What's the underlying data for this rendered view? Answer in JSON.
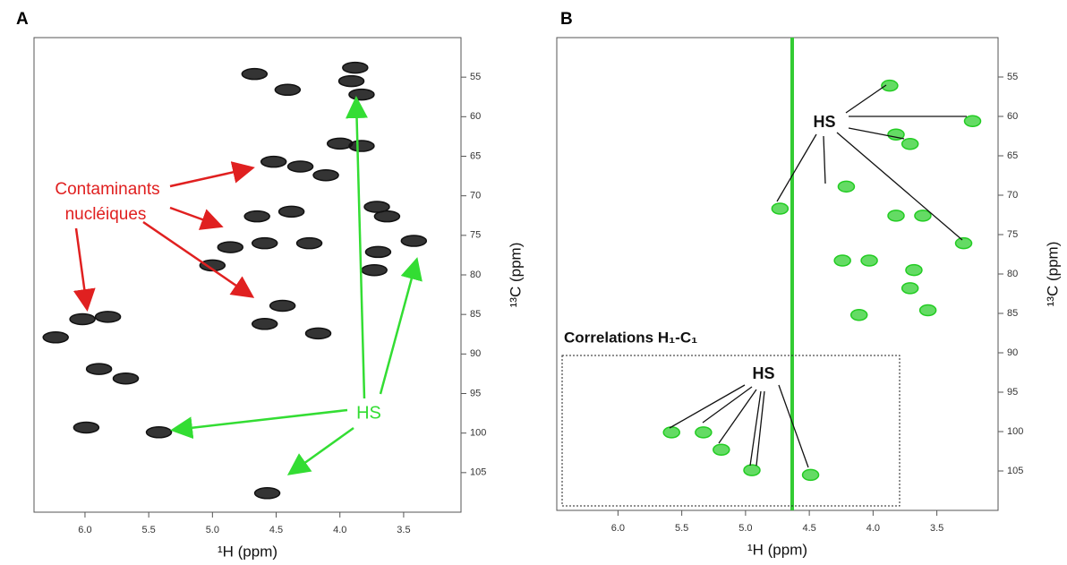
{
  "chart_data": [
    {
      "type": "scatter",
      "panel": "A",
      "xlabel": "¹H (ppm)",
      "ylabel": "¹³C (ppm)",
      "xlim": [
        6.4,
        3.05
      ],
      "ylim": [
        110,
        50
      ],
      "xticks": [
        {
          "value": 6,
          "label": "6.0"
        },
        5.5,
        {
          "value": 5,
          "label": "5.0"
        },
        4.5,
        {
          "value": 4,
          "label": "4.0"
        },
        3.5
      ],
      "yticks": [
        55,
        60,
        65,
        70,
        75,
        80,
        85,
        90,
        95,
        100,
        105
      ],
      "annotations": [
        "Contaminants",
        "nucléiques",
        "HS"
      ],
      "series": [
        {
          "color": "#111111",
          "x": [
            4.67,
            4.41,
            3.88,
            3.91,
            3.83,
            4.0,
            3.83,
            4.31,
            4.52,
            4.11,
            4.65,
            4.38,
            4.86,
            4.59,
            4.24,
            5.0,
            4.45,
            4.17,
            4.59,
            6.02,
            6.23,
            5.82,
            5.89,
            5.68,
            5.99,
            5.42,
            4.57,
            3.71,
            3.63,
            3.7,
            3.42,
            3.73
          ],
          "values": [
            54.6,
            56.6,
            53.8,
            55.5,
            57.2,
            63.4,
            63.7,
            66.3,
            65.7,
            67.4,
            72.6,
            72.0,
            76.5,
            76.0,
            76.0,
            78.8,
            83.9,
            87.4,
            86.2,
            85.6,
            87.9,
            85.3,
            91.9,
            93.1,
            99.3,
            99.9,
            107.6,
            71.4,
            72.6,
            77.1,
            75.7,
            79.4
          ]
        }
      ]
    },
    {
      "type": "scatter",
      "panel": "B",
      "xlabel": "¹H (ppm)",
      "ylabel": "¹³C (ppm)",
      "xlim": [
        6.48,
        3.02
      ],
      "ylim": [
        110,
        50
      ],
      "xticks": [
        {
          "value": 6,
          "label": "6.0"
        },
        5.5,
        {
          "value": 5,
          "label": "5.0"
        },
        4.5,
        {
          "value": 4,
          "label": "4.0"
        },
        3.5
      ],
      "yticks": [
        55,
        60,
        65,
        70,
        75,
        80,
        85,
        90,
        95,
        100,
        105
      ],
      "annotations": [
        "HS",
        "Correlations H₁-C₁",
        "HS"
      ],
      "series": [
        {
          "color": "#22cc22",
          "x": [
            3.87,
            3.22,
            3.82,
            3.71,
            4.73,
            4.21,
            3.82,
            3.61,
            3.29,
            4.24,
            4.03,
            3.68,
            3.71,
            3.57,
            4.11,
            5.58,
            5.33,
            5.19,
            4.95,
            4.49
          ],
          "values": [
            56.1,
            60.6,
            62.3,
            63.5,
            71.7,
            68.9,
            72.6,
            72.6,
            76.1,
            78.3,
            78.3,
            79.5,
            81.8,
            84.6,
            85.2,
            100.1,
            100.1,
            102.3,
            104.9,
            105.5
          ]
        }
      ]
    }
  ]
}
